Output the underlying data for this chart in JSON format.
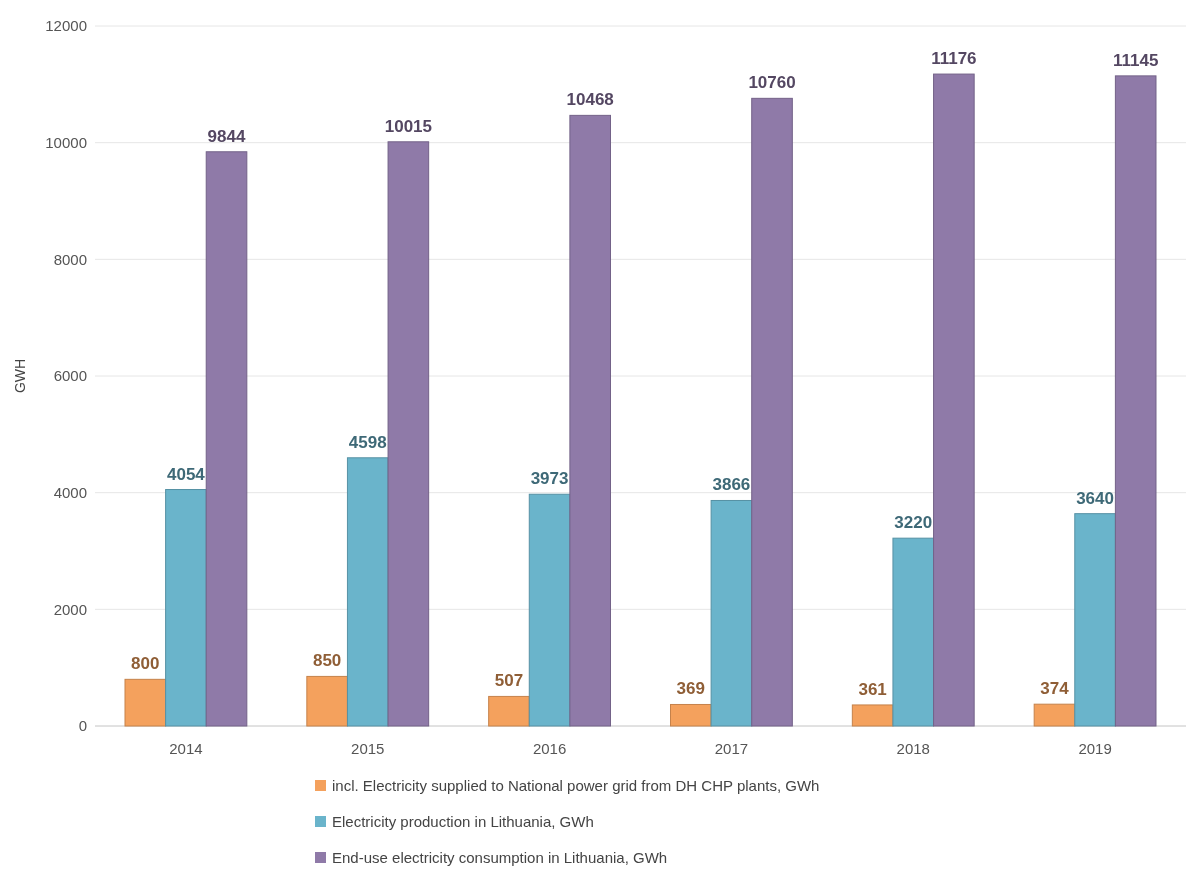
{
  "chart_data": {
    "type": "bar",
    "ylabel": "GWH",
    "categories": [
      "2014",
      "2015",
      "2016",
      "2017",
      "2018",
      "2019"
    ],
    "series": [
      {
        "name": "incl. Electricity supplied to National power grid from DH CHP plants, GWh",
        "color": "#f4a15d",
        "values": [
          800,
          850,
          507,
          369,
          361,
          374
        ]
      },
      {
        "name": "Electricity production in Lithuania, GWh",
        "color": "#6ab4cb",
        "values": [
          4054,
          4598,
          3973,
          3866,
          3220,
          3640
        ]
      },
      {
        "name": "End-use electricity consumption in Lithuania, GWh",
        "color": "#8f7aa8",
        "values": [
          9844,
          10015,
          10468,
          10760,
          11176,
          11145
        ]
      }
    ],
    "ylim": [
      0,
      12000
    ],
    "yticks": [
      0,
      2000,
      4000,
      6000,
      8000,
      10000,
      12000
    ],
    "grid": "y",
    "legend": "bottom",
    "data_labels": true
  }
}
